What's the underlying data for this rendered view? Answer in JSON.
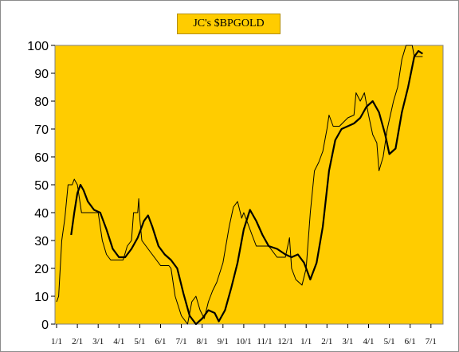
{
  "chart_data": {
    "type": "line",
    "title": "JC's $BPGOLD",
    "xlabel": "",
    "ylabel": "",
    "ylim": [
      0,
      100
    ],
    "yticks": [
      0,
      10,
      20,
      30,
      40,
      50,
      60,
      70,
      80,
      90,
      100
    ],
    "xticks": [
      "1/1",
      "2/1",
      "3/1",
      "4/1",
      "5/1",
      "6/1",
      "7/1",
      "8/1",
      "9/1",
      "10/1",
      "11/1",
      "12/1",
      "1/1",
      "2/1",
      "3/1",
      "4/1",
      "5/1",
      "6/1",
      "7/1"
    ],
    "grid": false,
    "legend": "none",
    "plot_background": "#ffcc00",
    "series": [
      {
        "style": "thin",
        "color": "#000000",
        "points": [
          [
            0,
            8
          ],
          [
            0.1,
            10
          ],
          [
            0.25,
            30
          ],
          [
            0.4,
            38
          ],
          [
            0.55,
            50
          ],
          [
            0.75,
            50
          ],
          [
            0.85,
            52
          ],
          [
            1.0,
            50
          ],
          [
            1.1,
            45
          ],
          [
            1.2,
            40
          ],
          [
            1.8,
            40
          ],
          [
            2.0,
            40
          ],
          [
            2.2,
            30
          ],
          [
            2.4,
            25
          ],
          [
            2.6,
            23
          ],
          [
            3.2,
            23
          ],
          [
            3.4,
            28
          ],
          [
            3.6,
            30
          ],
          [
            3.7,
            40
          ],
          [
            3.9,
            40
          ],
          [
            3.95,
            45
          ],
          [
            4.0,
            38
          ],
          [
            4.1,
            30
          ],
          [
            4.3,
            28
          ],
          [
            4.5,
            26
          ],
          [
            4.8,
            23
          ],
          [
            5.0,
            21
          ],
          [
            5.4,
            21
          ],
          [
            5.5,
            20
          ],
          [
            5.7,
            10
          ],
          [
            6.0,
            3
          ],
          [
            6.3,
            0
          ],
          [
            6.5,
            8
          ],
          [
            6.7,
            10
          ],
          [
            6.9,
            5
          ],
          [
            7.1,
            2
          ],
          [
            7.3,
            8
          ],
          [
            7.5,
            12
          ],
          [
            7.7,
            15
          ],
          [
            8.0,
            22
          ],
          [
            8.3,
            35
          ],
          [
            8.5,
            42
          ],
          [
            8.7,
            44
          ],
          [
            8.9,
            38
          ],
          [
            9.0,
            40
          ],
          [
            9.2,
            36
          ],
          [
            9.4,
            32
          ],
          [
            9.6,
            28
          ],
          [
            10.2,
            28
          ],
          [
            10.6,
            24
          ],
          [
            11.0,
            24
          ],
          [
            11.2,
            31
          ],
          [
            11.3,
            20
          ],
          [
            11.5,
            16
          ],
          [
            11.8,
            14
          ],
          [
            12.0,
            20
          ],
          [
            12.2,
            40
          ],
          [
            12.4,
            55
          ],
          [
            12.6,
            58
          ],
          [
            12.8,
            62
          ],
          [
            13.0,
            70
          ],
          [
            13.1,
            75
          ],
          [
            13.3,
            71
          ],
          [
            13.6,
            71
          ],
          [
            14.0,
            74
          ],
          [
            14.3,
            75
          ],
          [
            14.4,
            83
          ],
          [
            14.6,
            80
          ],
          [
            14.8,
            83
          ],
          [
            15.0,
            75
          ],
          [
            15.2,
            68
          ],
          [
            15.4,
            65
          ],
          [
            15.5,
            55
          ],
          [
            15.7,
            60
          ],
          [
            15.9,
            70
          ],
          [
            16.2,
            80
          ],
          [
            16.4,
            85
          ],
          [
            16.6,
            95
          ],
          [
            16.8,
            100
          ],
          [
            17.1,
            100
          ],
          [
            17.2,
            96
          ],
          [
            17.6,
            96
          ]
        ]
      },
      {
        "style": "thick",
        "color": "#000000",
        "points": [
          [
            0.7,
            32
          ],
          [
            0.85,
            40
          ],
          [
            1.0,
            47
          ],
          [
            1.15,
            50
          ],
          [
            1.3,
            48
          ],
          [
            1.5,
            44
          ],
          [
            1.8,
            41
          ],
          [
            2.1,
            40
          ],
          [
            2.4,
            34
          ],
          [
            2.7,
            27
          ],
          [
            3.0,
            24
          ],
          [
            3.3,
            24
          ],
          [
            3.6,
            27
          ],
          [
            3.9,
            31
          ],
          [
            4.2,
            37
          ],
          [
            4.4,
            39
          ],
          [
            4.6,
            35
          ],
          [
            4.9,
            28
          ],
          [
            5.2,
            25
          ],
          [
            5.5,
            23
          ],
          [
            5.8,
            20
          ],
          [
            6.1,
            11
          ],
          [
            6.4,
            3
          ],
          [
            6.7,
            0
          ],
          [
            7.0,
            2
          ],
          [
            7.3,
            5
          ],
          [
            7.6,
            4
          ],
          [
            7.8,
            1
          ],
          [
            8.1,
            5
          ],
          [
            8.4,
            13
          ],
          [
            8.7,
            22
          ],
          [
            9.0,
            34
          ],
          [
            9.3,
            41
          ],
          [
            9.6,
            37
          ],
          [
            9.9,
            32
          ],
          [
            10.2,
            28
          ],
          [
            10.6,
            27
          ],
          [
            11.0,
            25
          ],
          [
            11.3,
            24
          ],
          [
            11.6,
            25
          ],
          [
            11.9,
            22
          ],
          [
            12.2,
            16
          ],
          [
            12.5,
            22
          ],
          [
            12.8,
            35
          ],
          [
            13.1,
            55
          ],
          [
            13.4,
            66
          ],
          [
            13.7,
            70
          ],
          [
            14.0,
            71
          ],
          [
            14.3,
            72
          ],
          [
            14.6,
            74
          ],
          [
            14.9,
            78
          ],
          [
            15.2,
            80
          ],
          [
            15.5,
            76
          ],
          [
            15.8,
            68
          ],
          [
            16.0,
            61
          ],
          [
            16.3,
            63
          ],
          [
            16.6,
            76
          ],
          [
            16.9,
            85
          ],
          [
            17.2,
            96
          ],
          [
            17.4,
            98
          ],
          [
            17.6,
            97
          ]
        ]
      }
    ]
  }
}
